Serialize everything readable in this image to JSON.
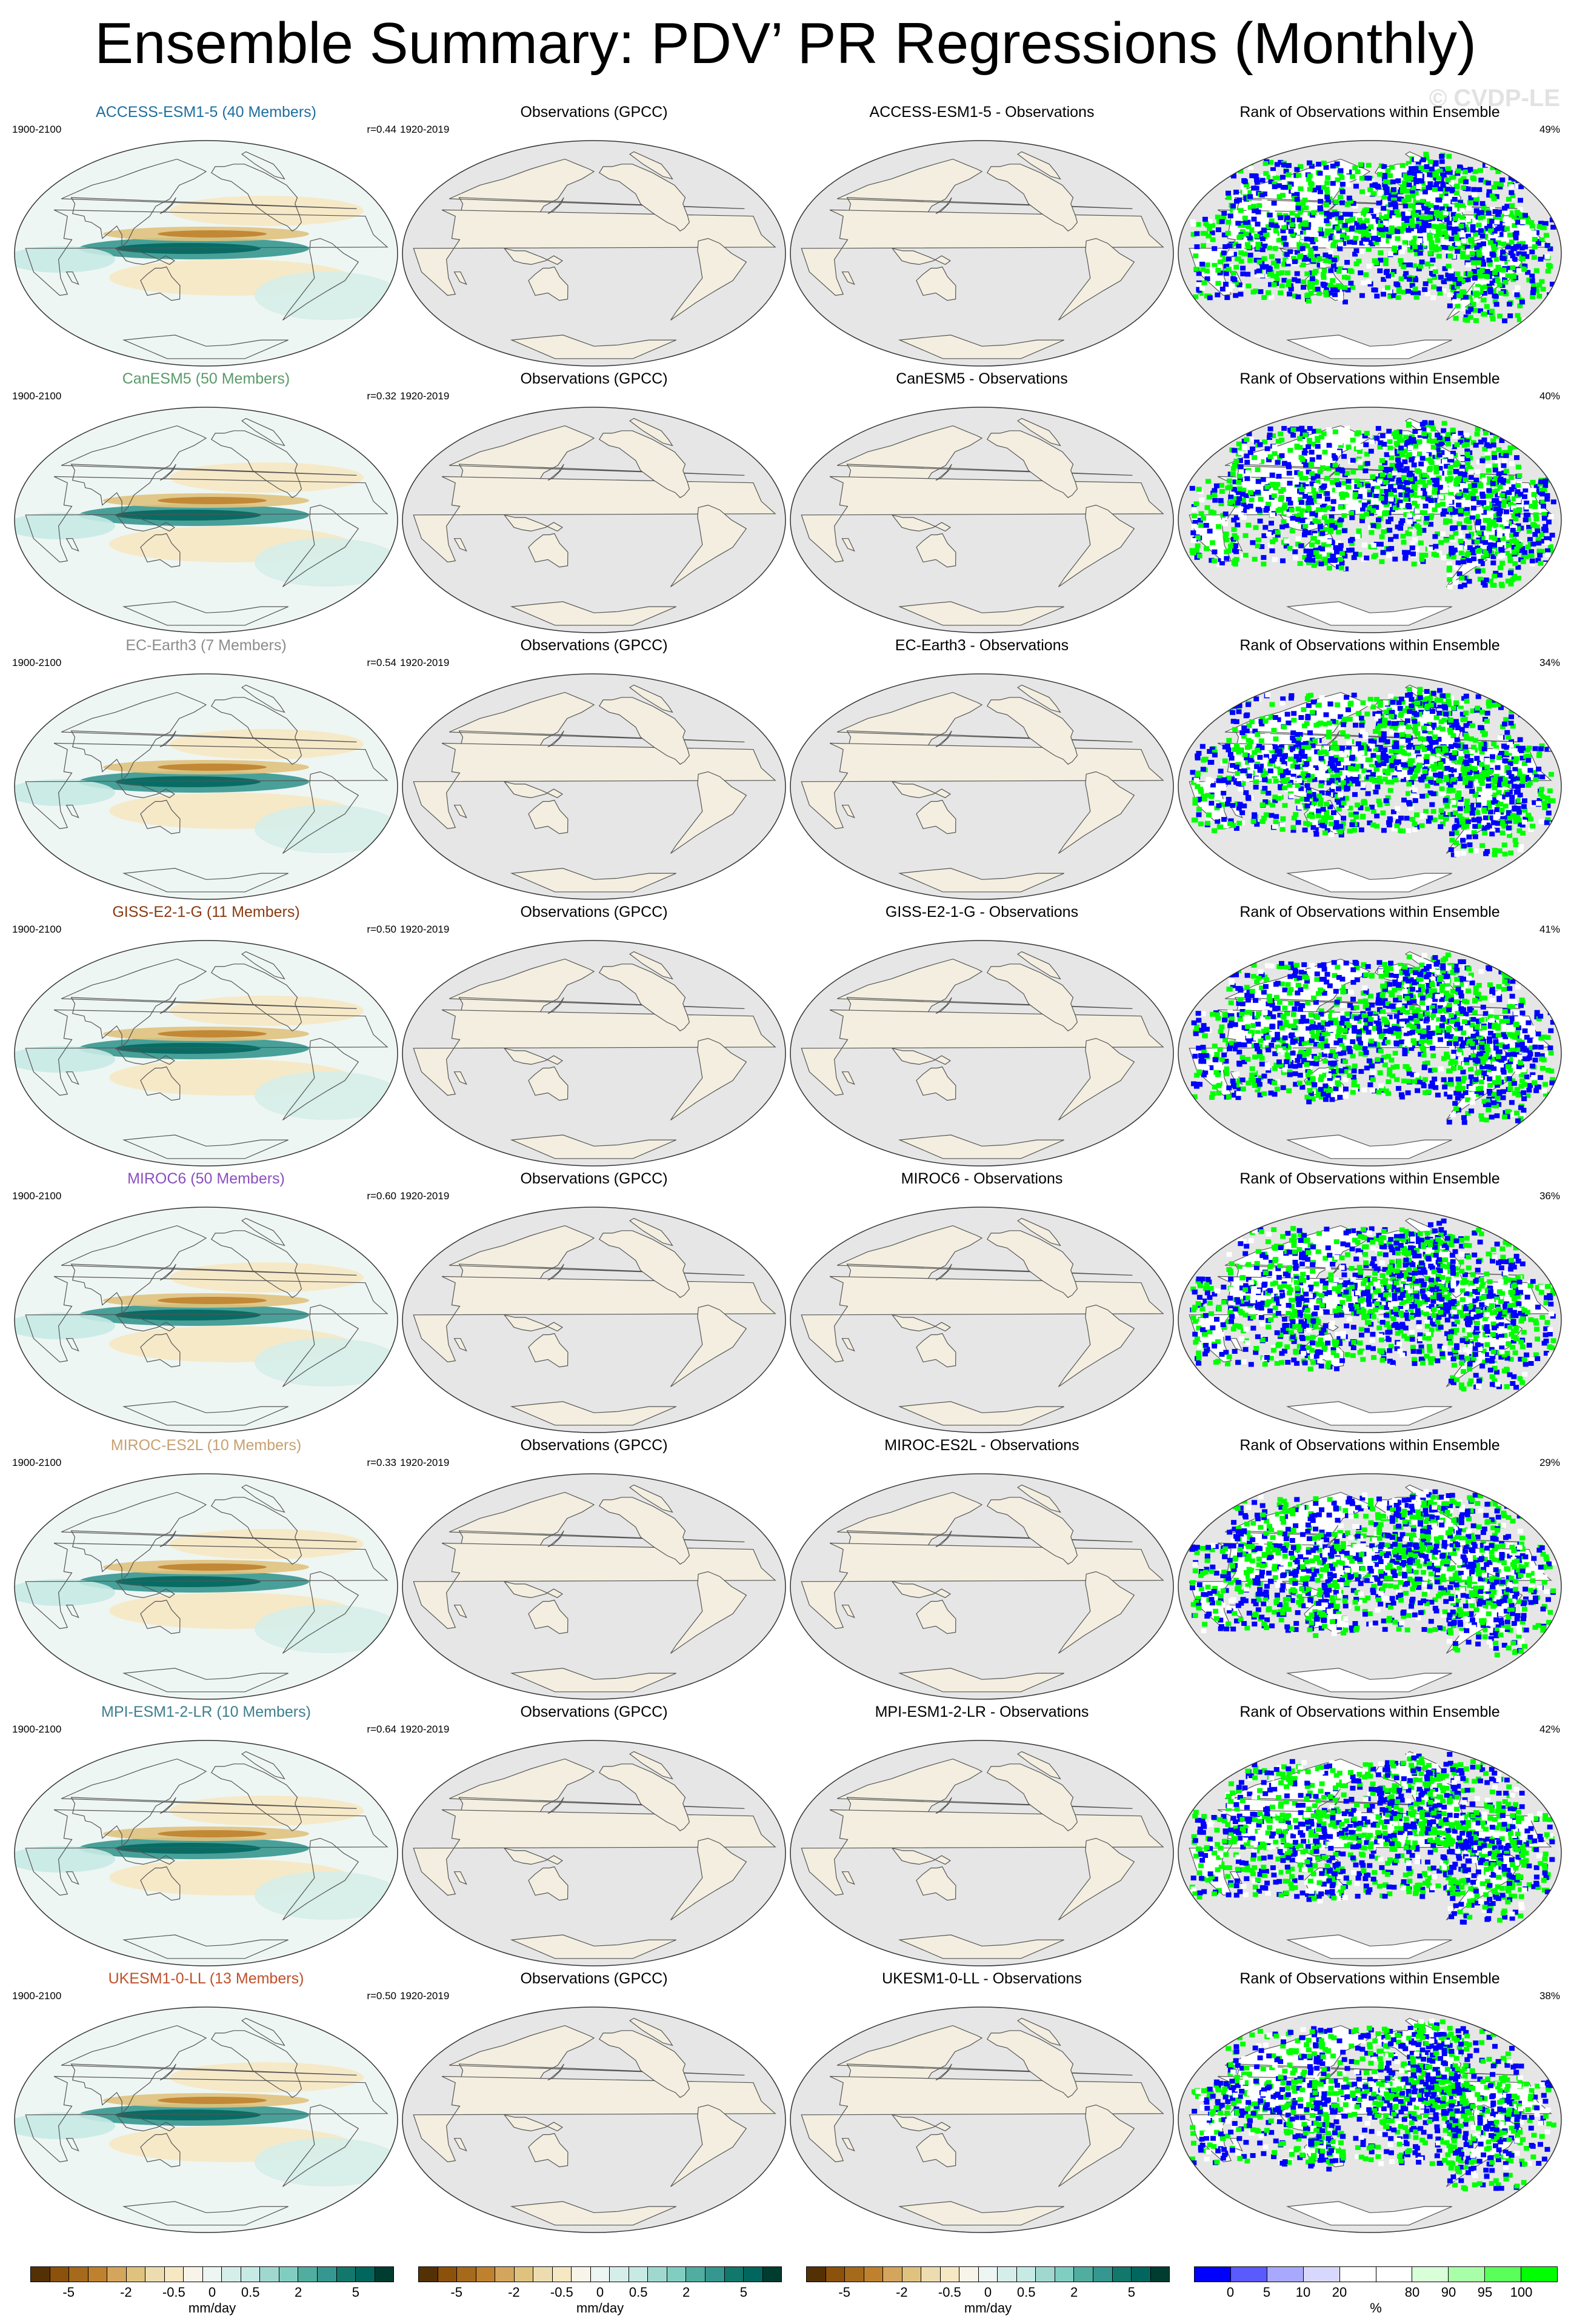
{
  "title": "Ensemble Summary: PDV’ PR Regressions (Monthly)",
  "watermark": "© CVDP-LE",
  "obs_title": "Observations (GPCC)",
  "obs_period": "1920-2019",
  "rank_title": "Rank of Observations within Ensemble",
  "model_period": "1900-2100",
  "rows": [
    {
      "model": "ACCESS-ESM1-5",
      "title": "ACCESS-ESM1-5 (40 Members)",
      "color": "#1e6fa0",
      "r": "r=0.44",
      "diff_title": "ACCESS-ESM1-5 - Observations",
      "rank_pct": "49%"
    },
    {
      "model": "CanESM5",
      "title": "CanESM5 (50 Members)",
      "color": "#5a9a6a",
      "r": "r=0.32",
      "diff_title": "CanESM5 - Observations",
      "rank_pct": "40%"
    },
    {
      "model": "EC-Earth3",
      "title": "EC-Earth3 (7 Members)",
      "color": "#8c8c8c",
      "r": "r=0.54",
      "diff_title": "EC-Earth3 - Observations",
      "rank_pct": "34%"
    },
    {
      "model": "GISS-E2-1-G",
      "title": "GISS-E2-1-G (11 Members)",
      "color": "#8a3a10",
      "r": "r=0.50",
      "diff_title": "GISS-E2-1-G - Observations",
      "rank_pct": "41%"
    },
    {
      "model": "MIROC6",
      "title": "MIROC6 (50 Members)",
      "color": "#8a4fc0",
      "r": "r=0.60",
      "diff_title": "MIROC6 - Observations",
      "rank_pct": "36%"
    },
    {
      "model": "MIROC-ES2L",
      "title": "MIROC-ES2L (10 Members)",
      "color": "#c8a070",
      "r": "r=0.33",
      "diff_title": "MIROC-ES2L - Observations",
      "rank_pct": "29%"
    },
    {
      "model": "MPI-ESM1-2-LR",
      "title": "MPI-ESM1-2-LR (10 Members)",
      "color": "#3d7f8e",
      "r": "r=0.64",
      "diff_title": "MPI-ESM1-2-LR - Observations",
      "rank_pct": "42%"
    },
    {
      "model": "UKESM1-0-LL",
      "title": "UKESM1-0-LL (13 Members)",
      "color": "#c0502a",
      "r": "r=0.50",
      "diff_title": "UKESM1-0-LL - Observations",
      "rank_pct": "38%"
    }
  ],
  "colorbar_mm": {
    "ticks": [
      "-5",
      "-2",
      "-0.5",
      "0",
      "0.5",
      "2",
      "5"
    ],
    "units": "mm/day",
    "colors": [
      "#543005",
      "#8c510a",
      "#a66a1c",
      "#bf812d",
      "#d4a55c",
      "#dfc27d",
      "#ecdcb0",
      "#f6e8c3",
      "#f8f4ea",
      "#eef6f3",
      "#d5eee9",
      "#c7eae5",
      "#a0d8cf",
      "#80cdc1",
      "#50ad9f",
      "#35978f",
      "#13786c",
      "#01665e",
      "#003c30"
    ]
  },
  "colorbar_rank": {
    "ticks": [
      "0",
      "5",
      "10",
      "20",
      "80",
      "90",
      "95",
      "100"
    ],
    "units": "%",
    "colors": [
      "#0000ff",
      "#5a5aff",
      "#a8a8ff",
      "#d8d8ff",
      "#ffffff",
      "#ffffff",
      "#d8ffd8",
      "#a8ffa8",
      "#5aff5a",
      "#00ff00"
    ]
  }
}
